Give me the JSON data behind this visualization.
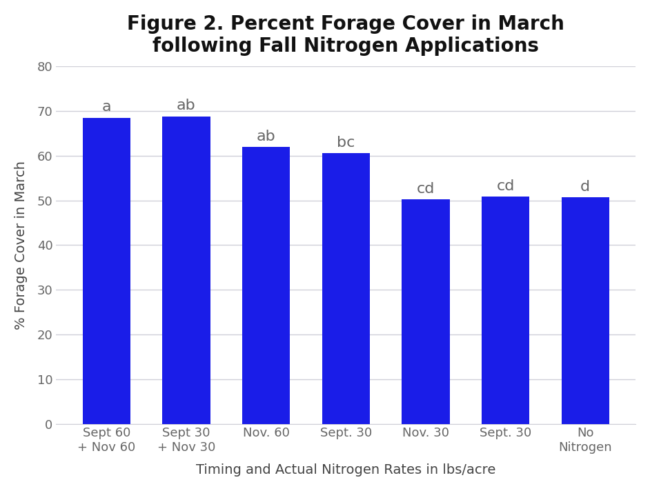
{
  "title": "Figure 2. Percent Forage Cover in March\nfollowing Fall Nitrogen Applications",
  "xlabel": "Timing and Actual Nitrogen Rates in lbs/acre",
  "ylabel": "% Forage Cover in March",
  "categories": [
    "Sept 60\n+ Nov 60",
    "Sept 30\n+ Nov 30",
    "Nov. 60",
    "Sept. 30",
    "Nov. 30",
    "Sept. 30",
    "No\nNitrogen"
  ],
  "values": [
    68.5,
    68.8,
    62.0,
    60.5,
    50.2,
    50.8,
    50.7
  ],
  "letters": [
    "a",
    "ab",
    "ab",
    "bc",
    "cd",
    "cd",
    "d"
  ],
  "bar_color": "#1a1de8",
  "ylim": [
    0,
    80
  ],
  "yticks": [
    0,
    10,
    20,
    30,
    40,
    50,
    60,
    70,
    80
  ],
  "background_color": "#ffffff",
  "plot_bg_color": "#ffffff",
  "grid_color": "#d0d0d8",
  "title_fontsize": 20,
  "axis_label_fontsize": 14,
  "tick_fontsize": 13,
  "letter_fontsize": 16,
  "tick_label_color": "#666666",
  "axis_label_color": "#444444",
  "title_color": "#111111",
  "bar_width": 0.6
}
